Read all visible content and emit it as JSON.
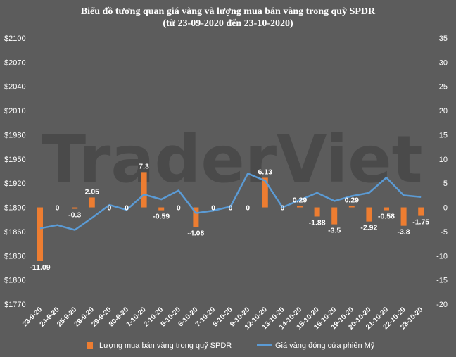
{
  "chart_data": {
    "type": "bar",
    "title": "Biểu đồ tương quan giá vàng và lượng mua bán vàng trong quỹ SPDR",
    "subtitle": "(từ 23-09-2020 đến 23-10-2020)",
    "watermark": "TraderViet",
    "categories": [
      "23-9-20",
      "24-9-20",
      "25-9-20",
      "28-9-20",
      "29-9-20",
      "30-9-20",
      "1-10-20",
      "2-10-20",
      "5-10-20",
      "6-10-20",
      "7-10-20",
      "8-10-20",
      "9-10-20",
      "12-10-20",
      "13-10-20",
      "14-10-20",
      "15-10-20",
      "16-10-20",
      "19-10-20",
      "20-10-20",
      "21-10-20",
      "22-10-20",
      "23-10-20"
    ],
    "left_axis": {
      "ylim": [
        1770,
        2100
      ],
      "ticks": [
        "$2100",
        "$2070",
        "$2040",
        "$2010",
        "$1980",
        "$1950",
        "$1920",
        "$1890",
        "$1860",
        "$1830",
        "$1800",
        "$1770"
      ],
      "tick_values": [
        2100,
        2070,
        2040,
        2010,
        1980,
        1950,
        1920,
        1890,
        1860,
        1830,
        1800,
        1770
      ]
    },
    "right_axis": {
      "ylim": [
        -20,
        35
      ],
      "ticks": [
        "35",
        "30",
        "25",
        "20",
        "15",
        "10",
        "5",
        "0",
        "-5",
        "-10",
        "-15",
        "-20"
      ],
      "tick_values": [
        35,
        30,
        25,
        20,
        15,
        10,
        5,
        0,
        -5,
        -10,
        -15,
        -20
      ]
    },
    "series": [
      {
        "name": "Lượng mua bán vàng trong quỹ SPDR",
        "type": "bar",
        "axis": "right",
        "color": "#ed7d31",
        "values": [
          -11.09,
          0,
          -0.3,
          2.05,
          0,
          0,
          7.3,
          -0.59,
          0,
          -4.08,
          0,
          0,
          0,
          6.13,
          0,
          0.29,
          -1.88,
          -3.5,
          0.29,
          -2.92,
          -0.58,
          -3.8,
          -1.75
        ],
        "labels": [
          "-11.09",
          "0",
          "-0.3",
          "2.05",
          "0",
          "0",
          "7.3",
          "-0.59",
          "0",
          "-4.08",
          "0",
          "0",
          "0",
          "6.13",
          "0",
          "0.29",
          "-1.88",
          "-3.5",
          "0.29",
          "-2.92",
          "-0.58",
          "-3.8",
          "-1.75"
        ]
      },
      {
        "name": "Giá vàng đóng cửa phiên Mỹ",
        "type": "line",
        "axis": "left",
        "color": "#5b9bd5",
        "values": [
          1864,
          1868,
          1862,
          1877,
          1893,
          1887,
          1906,
          1900,
          1911,
          1883,
          1886,
          1891,
          1932,
          1923,
          1890,
          1899,
          1908,
          1898,
          1904,
          1908,
          1927,
          1905,
          1903
        ]
      }
    ],
    "legend_position": "bottom",
    "grid": false
  }
}
